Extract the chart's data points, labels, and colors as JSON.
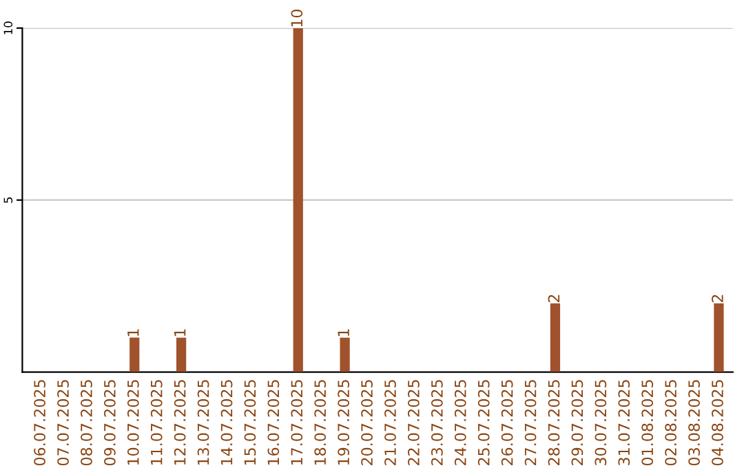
{
  "chart_data": {
    "type": "bar",
    "categories": [
      "06.07.2025",
      "07.07.2025",
      "08.07.2025",
      "09.07.2025",
      "10.07.2025",
      "11.07.2025",
      "12.07.2025",
      "13.07.2025",
      "14.07.2025",
      "15.07.2025",
      "16.07.2025",
      "17.07.2025",
      "18.07.2025",
      "19.07.2025",
      "20.07.2025",
      "21.07.2025",
      "22.07.2025",
      "23.07.2025",
      "24.07.2025",
      "25.07.2025",
      "26.07.2025",
      "27.07.2025",
      "28.07.2025",
      "29.07.2025",
      "30.07.2025",
      "31.07.2025",
      "01.08.2025",
      "02.08.2025",
      "03.08.2025",
      "04.08.2025"
    ],
    "values": [
      0,
      0,
      0,
      0,
      1,
      0,
      1,
      0,
      0,
      0,
      0,
      10,
      0,
      1,
      0,
      0,
      0,
      0,
      0,
      0,
      0,
      0,
      2,
      0,
      0,
      0,
      0,
      0,
      0,
      2
    ],
    "value_labels": [
      null,
      null,
      null,
      null,
      "1",
      null,
      "1",
      null,
      null,
      null,
      null,
      "10",
      null,
      "1",
      null,
      null,
      null,
      null,
      null,
      null,
      null,
      null,
      "2",
      null,
      null,
      null,
      null,
      null,
      null,
      "2"
    ],
    "color": "#a0522d",
    "ylim": [
      0,
      10
    ],
    "yticks": [
      5,
      10
    ],
    "grid": "y",
    "legend": false
  }
}
